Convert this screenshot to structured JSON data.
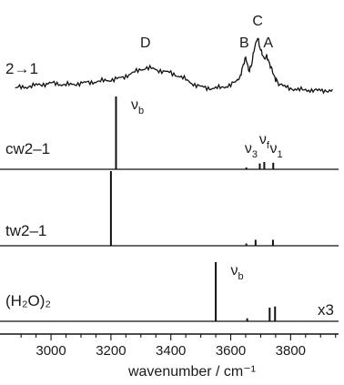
{
  "chart_data": {
    "type": "line",
    "xlabel": "wavenumber / cm⁻¹",
    "xlim": [
      2860,
      3960
    ],
    "x_ticks": [
      3000,
      3200,
      3400,
      3600,
      3800
    ],
    "minor_tick_step": 50,
    "grid": false,
    "experimental_spectrum": {
      "label": "2→1",
      "peak_labels": [
        {
          "text": "D",
          "x": 3315
        },
        {
          "text": "B",
          "x": 3645
        },
        {
          "text": "C",
          "x": 3690
        },
        {
          "text": "A",
          "x": 3725
        }
      ],
      "x": [
        2880,
        2900,
        2920,
        2940,
        2960,
        2980,
        3000,
        3020,
        3040,
        3060,
        3080,
        3100,
        3120,
        3140,
        3160,
        3180,
        3200,
        3220,
        3240,
        3260,
        3280,
        3300,
        3320,
        3340,
        3360,
        3380,
        3400,
        3420,
        3440,
        3460,
        3480,
        3500,
        3520,
        3540,
        3560,
        3580,
        3600,
        3620,
        3630,
        3640,
        3650,
        3660,
        3670,
        3680,
        3690,
        3700,
        3710,
        3720,
        3730,
        3740,
        3750,
        3760,
        3780,
        3800,
        3820,
        3840,
        3860,
        3880,
        3900,
        3920,
        3940
      ],
      "y": [
        0.06,
        0.07,
        0.08,
        0.1,
        0.12,
        0.13,
        0.15,
        0.14,
        0.12,
        0.12,
        0.13,
        0.15,
        0.16,
        0.17,
        0.18,
        0.2,
        0.21,
        0.23,
        0.26,
        0.31,
        0.36,
        0.41,
        0.44,
        0.42,
        0.39,
        0.37,
        0.34,
        0.3,
        0.25,
        0.18,
        0.12,
        0.08,
        0.06,
        0.05,
        0.06,
        0.08,
        0.12,
        0.18,
        0.25,
        0.45,
        0.65,
        0.38,
        0.5,
        0.85,
        1.0,
        0.78,
        0.62,
        0.65,
        0.52,
        0.36,
        0.22,
        0.14,
        0.08,
        0.05,
        0.03,
        0.02,
        0.02,
        0.01,
        0.01,
        0.01,
        0.0
      ]
    },
    "stick_spectra": [
      {
        "label": "cw2–1",
        "sticks": [
          {
            "x": 3217,
            "intensity": 1.0,
            "label": "ν",
            "sub": "b"
          },
          {
            "x": 3652,
            "intensity": 0.02
          },
          {
            "x": 3697,
            "intensity": 0.08,
            "label": "ν",
            "sub": "3",
            "label_x": 3668
          },
          {
            "x": 3712,
            "intensity": 0.1,
            "label": "ν",
            "sub": "f",
            "label_x": 3712
          },
          {
            "x": 3742,
            "intensity": 0.09,
            "label": "ν",
            "sub": "1",
            "label_x": 3752
          }
        ]
      },
      {
        "label": "tw2–1",
        "sticks": [
          {
            "x": 3200,
            "intensity": 1.0
          },
          {
            "x": 3652,
            "intensity": 0.03
          },
          {
            "x": 3683,
            "intensity": 0.08
          },
          {
            "x": 3741,
            "intensity": 0.08
          }
        ]
      },
      {
        "label": "(H₂O)₂",
        "sticks": [
          {
            "x": 3550,
            "intensity": 1.0,
            "label": "ν",
            "sub": "b"
          },
          {
            "x": 3655,
            "intensity": 0.05
          },
          {
            "x": 3730,
            "intensity": 0.23
          },
          {
            "x": 3748,
            "intensity": 0.25
          }
        ],
        "scale_note": "x3"
      }
    ]
  }
}
